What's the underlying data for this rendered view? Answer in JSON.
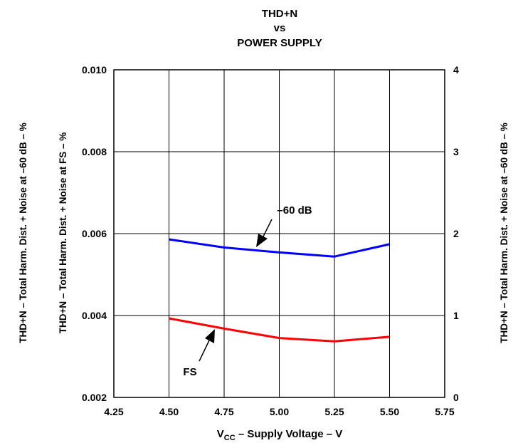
{
  "chart_data": {
    "type": "line",
    "title_lines": [
      "THD+N",
      "vs",
      "POWER SUPPLY"
    ],
    "xlabel_main": "V",
    "xlabel_sub": "CC",
    "xlabel_rest": " – Supply Voltage – V",
    "ylabel_left_outer": "THD+N – Total Harm. Dist. + Noise at –60 dB – %",
    "ylabel_left_inner": "THD+N – Total Harm. Dist. + Noise at FS – %",
    "ylabel_right": "THD+N – Total Harm. Dist. + Noise at –60 dB – %",
    "xlim": [
      4.25,
      5.75
    ],
    "ylim_left": [
      0.002,
      0.01
    ],
    "ylim_right": [
      0,
      4
    ],
    "x_ticks": [
      "4.25",
      "4.50",
      "4.75",
      "5.00",
      "5.25",
      "5.50",
      "5.75"
    ],
    "y_ticks_left": [
      "0.002",
      "0.004",
      "0.006",
      "0.008",
      "0.010"
    ],
    "y_ticks_right": [
      "0",
      "1",
      "2",
      "3",
      "4"
    ],
    "grid": true,
    "series": [
      {
        "name": "–60 dB",
        "axis": "right",
        "color": "#0000ff",
        "x": [
          4.5,
          4.75,
          5.0,
          5.25,
          5.5
        ],
        "y": [
          1.93,
          1.83,
          1.77,
          1.72,
          1.87
        ]
      },
      {
        "name": "FS",
        "axis": "left",
        "color": "#ff0000",
        "x": [
          4.5,
          4.75,
          5.0,
          5.25,
          5.5
        ],
        "y": [
          0.00393,
          0.00368,
          0.00345,
          0.00337,
          0.00348
        ]
      }
    ],
    "annotations": [
      {
        "text": "–60 dB",
        "series": "–60 dB"
      },
      {
        "text": "FS",
        "series": "FS"
      }
    ]
  }
}
